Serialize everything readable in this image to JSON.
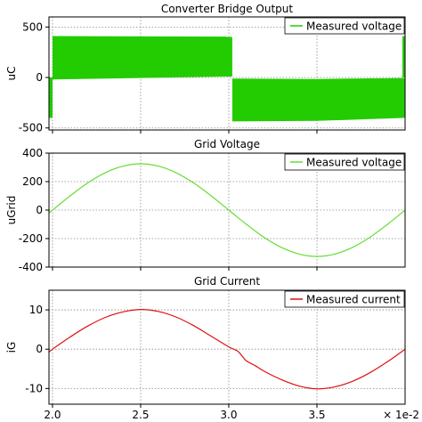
{
  "chart_data": [
    {
      "type": "line",
      "title": "Converter Bridge Output",
      "ylabel": "uC",
      "xlim": [
        1.98,
        4.0
      ],
      "ylim": [
        -520,
        600
      ],
      "yticks": [
        500,
        0,
        -500
      ],
      "grid": true,
      "legend_position": "top-right",
      "series": [
        {
          "name": "Measured voltage",
          "color": "#22cc00",
          "style": "pwm-band",
          "envelope": [
            {
              "from": 1.98,
              "to": 2.0,
              "top": 0,
              "bottom": -400
            },
            {
              "from": 2.0,
              "to": 3.02,
              "top_start": 410,
              "top_end": 405,
              "bottom_start": -20,
              "bottom_end": 10
            },
            {
              "from": 3.02,
              "to": 3.5,
              "top_start": -10,
              "top_end": -15,
              "bottom_start": -435,
              "bottom_end": -430
            },
            {
              "from": 3.5,
              "to": 4.0,
              "top_start": -15,
              "top_end": -5,
              "bottom_start": -430,
              "bottom_end": -400
            }
          ],
          "tail_spike": {
            "x": 3.99,
            "top": 410,
            "bottom": 0
          }
        }
      ]
    },
    {
      "type": "line",
      "title": "Grid Voltage",
      "ylabel": "uGrid",
      "xlim": [
        1.98,
        4.0
      ],
      "ylim": [
        -400,
        400
      ],
      "yticks": [
        400,
        200,
        0,
        -200,
        -400
      ],
      "grid": true,
      "legend_position": "top-right",
      "series": [
        {
          "name": "Measured voltage",
          "color": "#66dd33",
          "x": [
            1.98,
            2.0,
            2.1,
            2.2,
            2.3,
            2.4,
            2.5,
            2.6,
            2.7,
            2.8,
            2.9,
            3.0,
            3.1,
            3.2,
            3.3,
            3.4,
            3.5,
            3.6,
            3.7,
            3.8,
            3.9,
            4.0
          ],
          "values": [
            -20,
            0,
            100,
            191,
            263,
            309,
            325,
            309,
            263,
            191,
            100,
            0,
            -100,
            -191,
            -263,
            -309,
            -325,
            -309,
            -263,
            -191,
            -100,
            0
          ]
        }
      ]
    },
    {
      "type": "line",
      "title": "Grid Current",
      "ylabel": "iG",
      "xlim": [
        1.98,
        4.0
      ],
      "ylim": [
        -14,
        15
      ],
      "yticks": [
        10,
        0,
        -10
      ],
      "grid": true,
      "legend_position": "top-right",
      "series": [
        {
          "name": "Measured current",
          "color": "#e01010",
          "x": [
            1.98,
            2.0,
            2.1,
            2.2,
            2.3,
            2.4,
            2.5,
            2.6,
            2.7,
            2.8,
            2.9,
            3.0,
            3.05,
            3.08,
            3.1,
            3.15,
            3.2,
            3.3,
            3.4,
            3.5,
            3.6,
            3.7,
            3.8,
            3.9,
            4.0
          ],
          "values": [
            -0.8,
            0,
            3.1,
            5.9,
            8.1,
            9.5,
            10.1,
            9.6,
            8.2,
            6.0,
            3.3,
            0.6,
            -0.5,
            -2.0,
            -3.0,
            -4.2,
            -5.6,
            -7.8,
            -9.4,
            -10.1,
            -9.6,
            -8.2,
            -6.0,
            -3.2,
            0
          ]
        }
      ]
    }
  ],
  "x_axis": {
    "ticks": [
      2.0,
      2.5,
      3.0,
      3.5
    ],
    "tick_labels": [
      "2.0",
      "2.5",
      "3.0",
      "3.5"
    ],
    "multiplier": "× 1e-2"
  }
}
